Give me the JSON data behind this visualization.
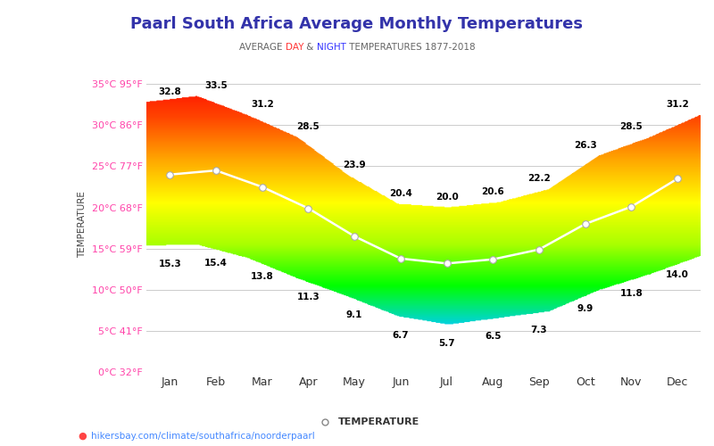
{
  "title": "Paarl South Africa Average Monthly Temperatures",
  "months": [
    "Jan",
    "Feb",
    "Mar",
    "Apr",
    "May",
    "Jun",
    "Jul",
    "Aug",
    "Sep",
    "Oct",
    "Nov",
    "Dec"
  ],
  "high_temps": [
    32.8,
    33.5,
    31.2,
    28.5,
    23.9,
    20.4,
    20.0,
    20.6,
    22.2,
    26.3,
    28.5,
    31.2
  ],
  "low_temps": [
    15.3,
    15.4,
    13.8,
    11.3,
    9.1,
    6.7,
    5.7,
    6.5,
    7.3,
    9.9,
    11.8,
    14.0
  ],
  "avg_temps": [
    24.0,
    24.5,
    22.5,
    19.9,
    16.5,
    13.8,
    13.2,
    13.7,
    14.9,
    18.0,
    20.1,
    23.5
  ],
  "ylim": [
    0,
    36
  ],
  "yticks_c": [
    0,
    5,
    10,
    15,
    20,
    25,
    30,
    35
  ],
  "yticks_f": [
    32,
    41,
    50,
    59,
    68,
    77,
    86,
    95
  ],
  "background_color": "#ffffff",
  "watermark": "hikersbay.com/climate/southafrica/noorderpaarl",
  "ylabel": "TEMPERATURE",
  "legend_label": "TEMPERATURE",
  "title_color": "#3333aa",
  "subtitle_parts": [
    "AVERAGE ",
    "DAY",
    " & ",
    "NIGHT",
    " TEMPERATURES 1877-2018"
  ],
  "subtitle_colors": [
    "#666666",
    "#ff3333",
    "#666666",
    "#3333ff",
    "#666666"
  ],
  "ylabel_color": "#444444",
  "tick_color": "#ff44aa",
  "month_tick_color": "#333333",
  "grid_color": "#cccccc",
  "watermark_color": "#4488ff"
}
